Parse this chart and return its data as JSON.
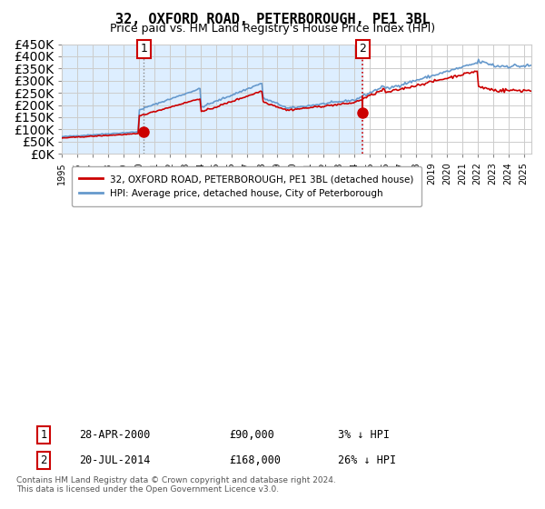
{
  "title": "32, OXFORD ROAD, PETERBOROUGH, PE1 3BL",
  "subtitle": "Price paid vs. HM Land Registry's House Price Index (HPI)",
  "legend_line1": "32, OXFORD ROAD, PETERBOROUGH, PE1 3BL (detached house)",
  "legend_line2": "HPI: Average price, detached house, City of Peterborough",
  "annotation1_label": "1",
  "annotation1_date": "28-APR-2000",
  "annotation1_price": "£90,000",
  "annotation1_hpi": "3% ↓ HPI",
  "annotation2_label": "2",
  "annotation2_date": "20-JUL-2014",
  "annotation2_price": "£168,000",
  "annotation2_hpi": "26% ↓ HPI",
  "footer": "Contains HM Land Registry data © Crown copyright and database right 2024.\nThis data is licensed under the Open Government Licence v3.0.",
  "red_color": "#cc0000",
  "blue_color": "#6699cc",
  "bg_fill_color": "#ddeeff",
  "sale1_year": 2000.32,
  "sale1_price": 90000,
  "sale2_year": 2014.55,
  "sale2_price": 168000,
  "ylim": [
    0,
    450000
  ],
  "xlim_start": 1995.0,
  "xlim_end": 2025.5
}
